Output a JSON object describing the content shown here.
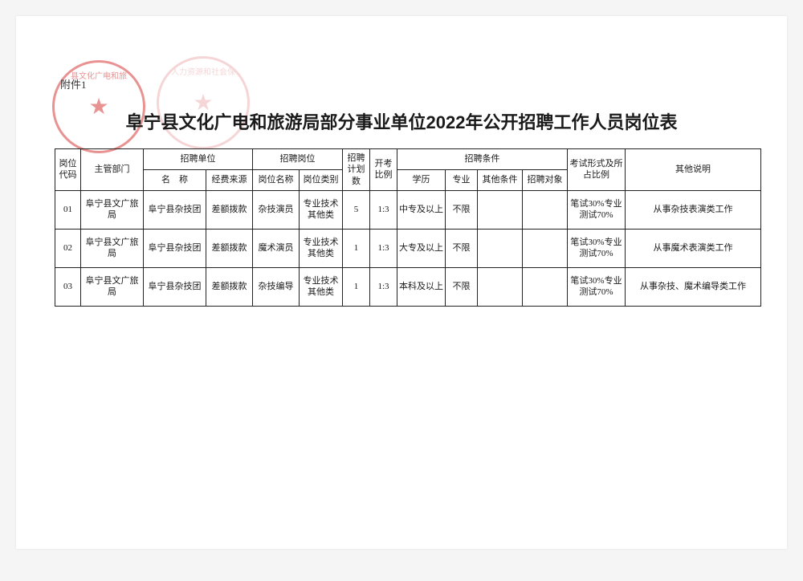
{
  "attachment_label": "附件1",
  "title": "阜宁县文化广电和旅游局部分事业单位2022年公开招聘工作人员岗位表",
  "stamps": {
    "stamp1_text": "县文化广电和旅",
    "stamp2_text": "人力资源和社会保"
  },
  "header": {
    "code": "岗位代码",
    "dept": "主管部门",
    "unit_group": "招聘单位",
    "unit_name": "名　称",
    "fund": "经费来源",
    "post_group": "招聘岗位",
    "post_name": "岗位名称",
    "post_type": "岗位类别",
    "plan": "招聘计划数",
    "ratio": "开考比例",
    "cond_group": "招聘条件",
    "edu": "学历",
    "major": "专业",
    "other_cond": "其他条件",
    "target": "招聘对象",
    "exam": "考试形式及所占比例",
    "note": "其他说明"
  },
  "rows": [
    {
      "code": "01",
      "dept": "阜宁县文广旅局",
      "unit_name": "阜宁县杂技团",
      "fund": "差额拨款",
      "post_name": "杂技演员",
      "post_type": "专业技术其他类",
      "plan": "5",
      "ratio": "1:3",
      "edu": "中专及以上",
      "major": "不限",
      "other_cond": "",
      "target": "",
      "exam": "笔试30%专业测试70%",
      "note": "从事杂技表演类工作"
    },
    {
      "code": "02",
      "dept": "阜宁县文广旅局",
      "unit_name": "阜宁县杂技团",
      "fund": "差额拨款",
      "post_name": "魔术演员",
      "post_type": "专业技术其他类",
      "plan": "1",
      "ratio": "1:3",
      "edu": "大专及以上",
      "major": "不限",
      "other_cond": "",
      "target": "",
      "exam": "笔试30%专业测试70%",
      "note": "从事魔术表演类工作"
    },
    {
      "code": "03",
      "dept": "阜宁县文广旅局",
      "unit_name": "阜宁县杂技团",
      "fund": "差额拨款",
      "post_name": "杂技编导",
      "post_type": "专业技术其他类",
      "plan": "1",
      "ratio": "1:3",
      "edu": "本科及以上",
      "major": "不限",
      "other_cond": "",
      "target": "",
      "exam": "笔试30%专业测试70%",
      "note": "从事杂技、魔术编导类工作"
    }
  ],
  "style": {
    "page_bg": "#ffffff",
    "border_color": "#222222",
    "text_color": "#1a1a1a",
    "stamp1_color": "#d83a3a",
    "stamp2_color": "#e48a8a",
    "title_fontsize": 22,
    "cell_fontsize": 11
  }
}
